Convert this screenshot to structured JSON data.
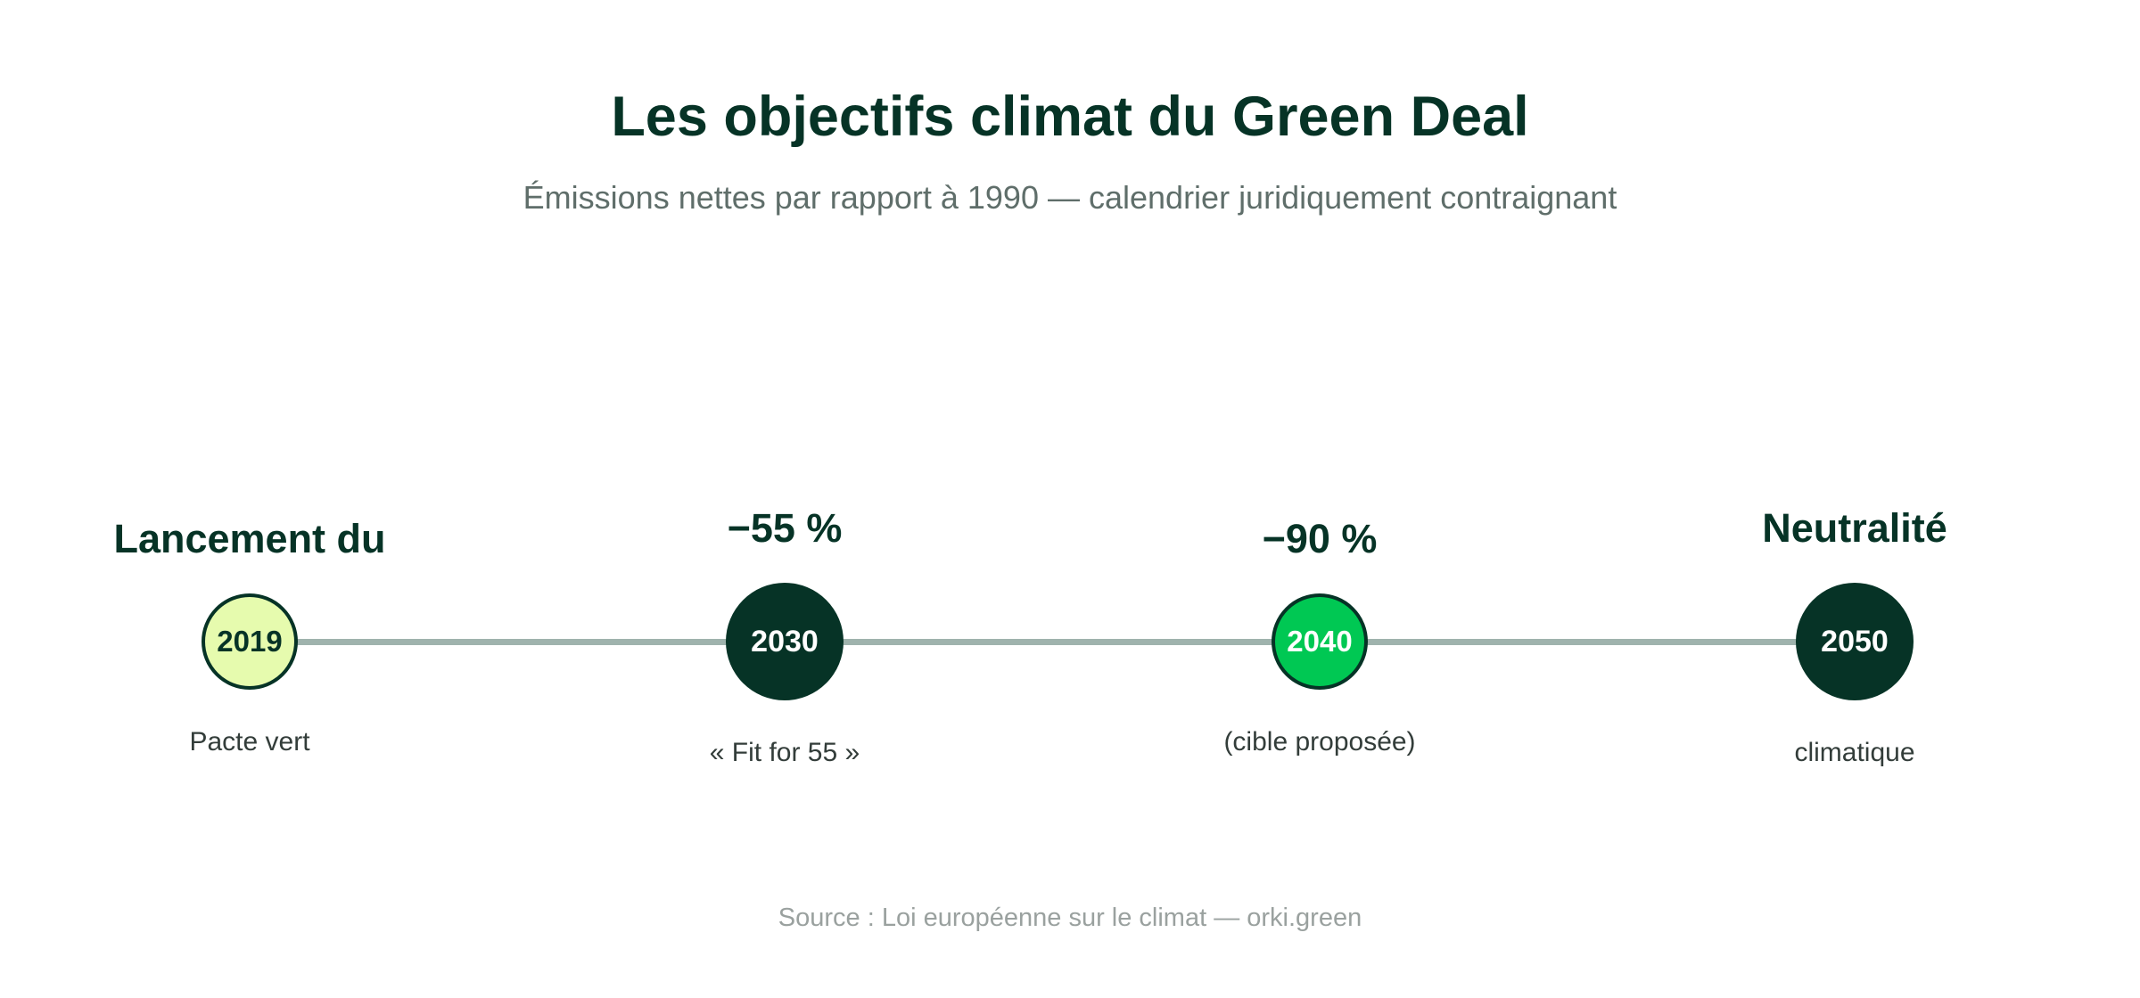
{
  "title": "Les objectifs climat du Green Deal",
  "subtitle": "Émissions nettes par rapport à 1990 — calendrier juridiquement contraignant",
  "milestones": [
    {
      "year": "2019",
      "headline": "Lancement du",
      "caption": "Pacte vert",
      "fill": "#e6fbae",
      "text_color": "#063326"
    },
    {
      "year": "2030",
      "headline": "−55 %",
      "caption": "« Fit for 55 »",
      "fill": "#063326",
      "text_color": "#ffffff"
    },
    {
      "year": "2040",
      "headline": "−90 %",
      "caption": "(cible proposée)",
      "fill": "#00c853",
      "text_color": "#ffffff"
    },
    {
      "year": "2050",
      "headline": "Neutralité",
      "caption": "climatique",
      "fill": "#063326",
      "text_color": "#ffffff"
    }
  ],
  "source": "Source : Loi européenne sur le climat — orki.green",
  "colors": {
    "primary": "#063326",
    "line": "#9fb3ad"
  }
}
